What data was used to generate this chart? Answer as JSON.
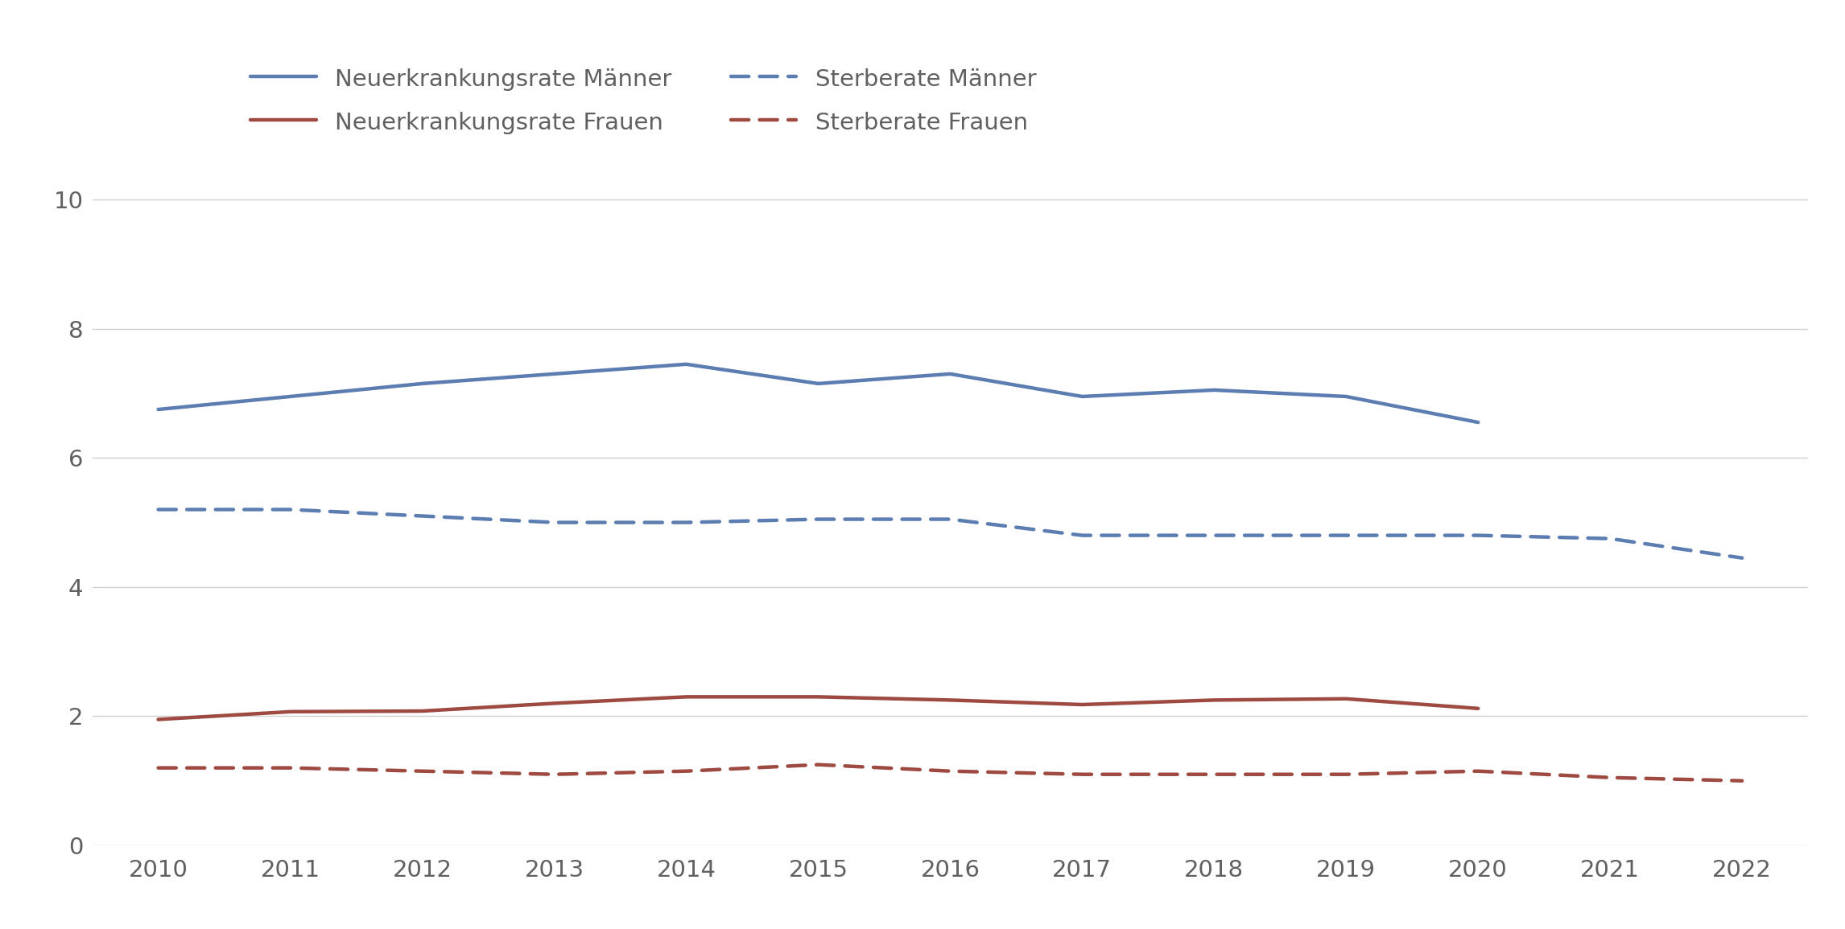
{
  "years": [
    2010,
    2011,
    2012,
    2013,
    2014,
    2015,
    2016,
    2017,
    2018,
    2019,
    2020,
    2021,
    2022
  ],
  "neuerkrankung_maenner": [
    6.75,
    6.95,
    7.15,
    7.3,
    7.45,
    7.15,
    7.3,
    6.95,
    7.05,
    6.95,
    6.55,
    null,
    null
  ],
  "neuerkrankung_frauen": [
    1.95,
    2.07,
    2.08,
    2.2,
    2.3,
    2.3,
    2.25,
    2.18,
    2.25,
    2.27,
    2.12,
    null,
    null
  ],
  "sterberate_maenner": [
    5.2,
    5.2,
    5.1,
    5.0,
    5.0,
    5.05,
    5.05,
    4.8,
    4.8,
    4.8,
    4.8,
    4.75,
    4.45
  ],
  "sterberate_frauen": [
    1.2,
    1.2,
    1.15,
    1.1,
    1.15,
    1.25,
    1.15,
    1.1,
    1.1,
    1.1,
    1.15,
    1.05,
    1.0
  ],
  "color_blue": "#5b7db1",
  "color_red": "#9e4a40",
  "ylim": [
    0,
    10.5
  ],
  "yticks": [
    0,
    2,
    4,
    6,
    8,
    10
  ],
  "xticks": [
    2010,
    2011,
    2012,
    2013,
    2014,
    2015,
    2016,
    2017,
    2018,
    2019,
    2020,
    2021,
    2022
  ],
  "legend_labels": [
    "Neuerkrankungsrate Männer",
    "Neuerkrankungsrate Frauen",
    "Sterberate Männer",
    "Sterberate Frauen"
  ],
  "background_color": "#ffffff",
  "grid_color": "#d0d0d0",
  "tick_color": "#606060",
  "linewidth_solid": 3.2,
  "linewidth_dash": 3.2
}
